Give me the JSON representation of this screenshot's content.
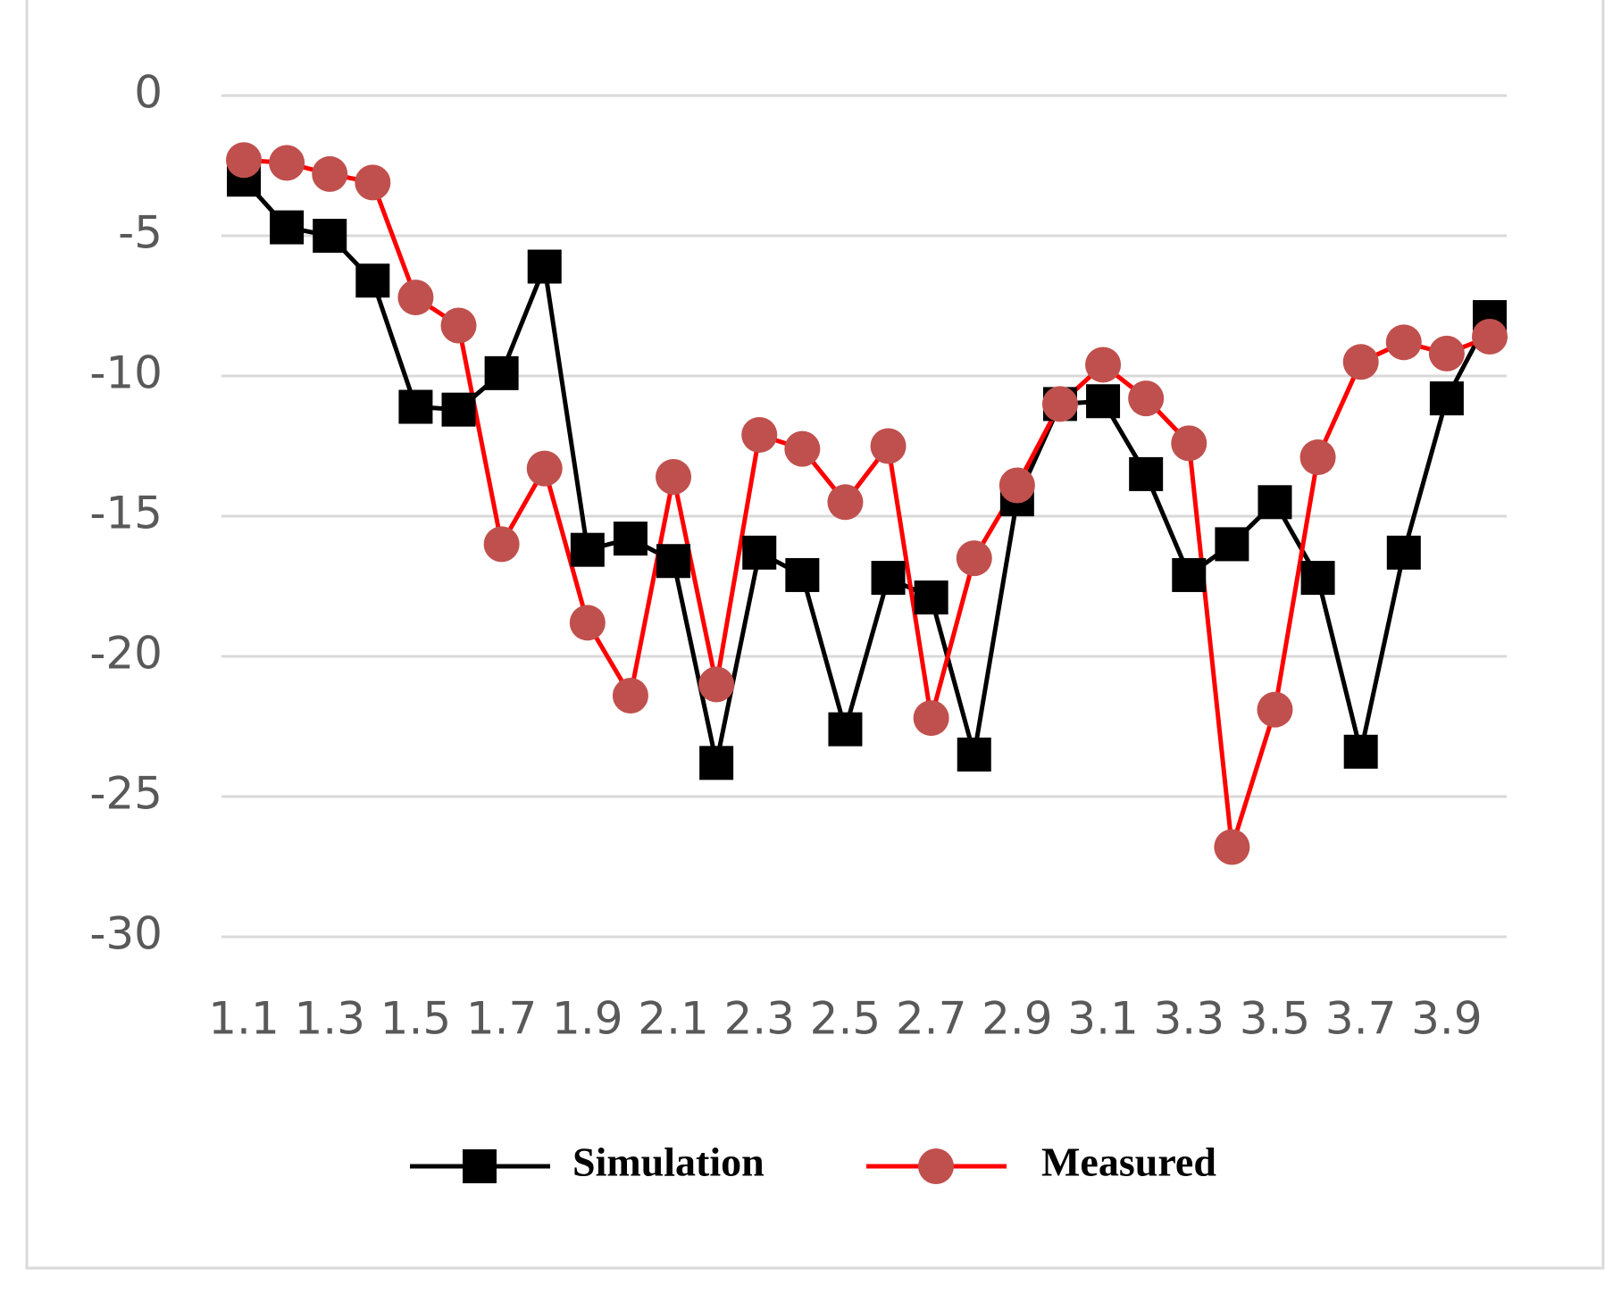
{
  "chart_data": {
    "type": "line",
    "categories": [
      "1.1",
      null,
      "1.3",
      null,
      "1.5",
      null,
      "1.7",
      null,
      "1.9",
      null,
      "2.1",
      null,
      "2.3",
      null,
      "2.5",
      null,
      "2.7",
      null,
      "2.9",
      null,
      "3.1",
      null,
      "3.3",
      null,
      "3.5",
      null,
      "3.7",
      null,
      "3.9",
      null
    ],
    "series": [
      {
        "name": "Simulation",
        "color": "#000000",
        "marker": "square",
        "marker_color": "#000000",
        "values": [
          -3.0,
          -4.7,
          -5.0,
          -6.6,
          -11.1,
          -11.2,
          -9.9,
          -6.1,
          -16.2,
          -15.8,
          -16.6,
          -23.8,
          -16.3,
          -17.1,
          -22.6,
          -17.2,
          -17.9,
          -23.5,
          -14.4,
          -11.0,
          -10.9,
          -13.5,
          -17.1,
          -16.0,
          -14.5,
          -17.2,
          -23.4,
          -16.3,
          -10.8,
          -7.9
        ]
      },
      {
        "name": "Measured",
        "color": "#ff0000",
        "marker": "circle",
        "marker_color": "#c0504d",
        "values": [
          -2.3,
          -2.4,
          -2.8,
          -3.1,
          -7.2,
          -8.2,
          -16.0,
          -13.3,
          -18.8,
          -21.4,
          -13.6,
          -21.0,
          -12.1,
          -12.6,
          -14.5,
          -12.5,
          -22.2,
          -16.5,
          -13.9,
          -11.0,
          -9.6,
          -10.8,
          -12.4,
          -26.8,
          -21.9,
          -12.9,
          -9.5,
          -8.8,
          -9.2,
          -8.6
        ]
      }
    ],
    "ylim": [
      -30,
      0
    ],
    "yticks": [
      -30,
      -25,
      -20,
      -15,
      -10,
      -5,
      0
    ],
    "grid": true,
    "legend": "bottom"
  }
}
